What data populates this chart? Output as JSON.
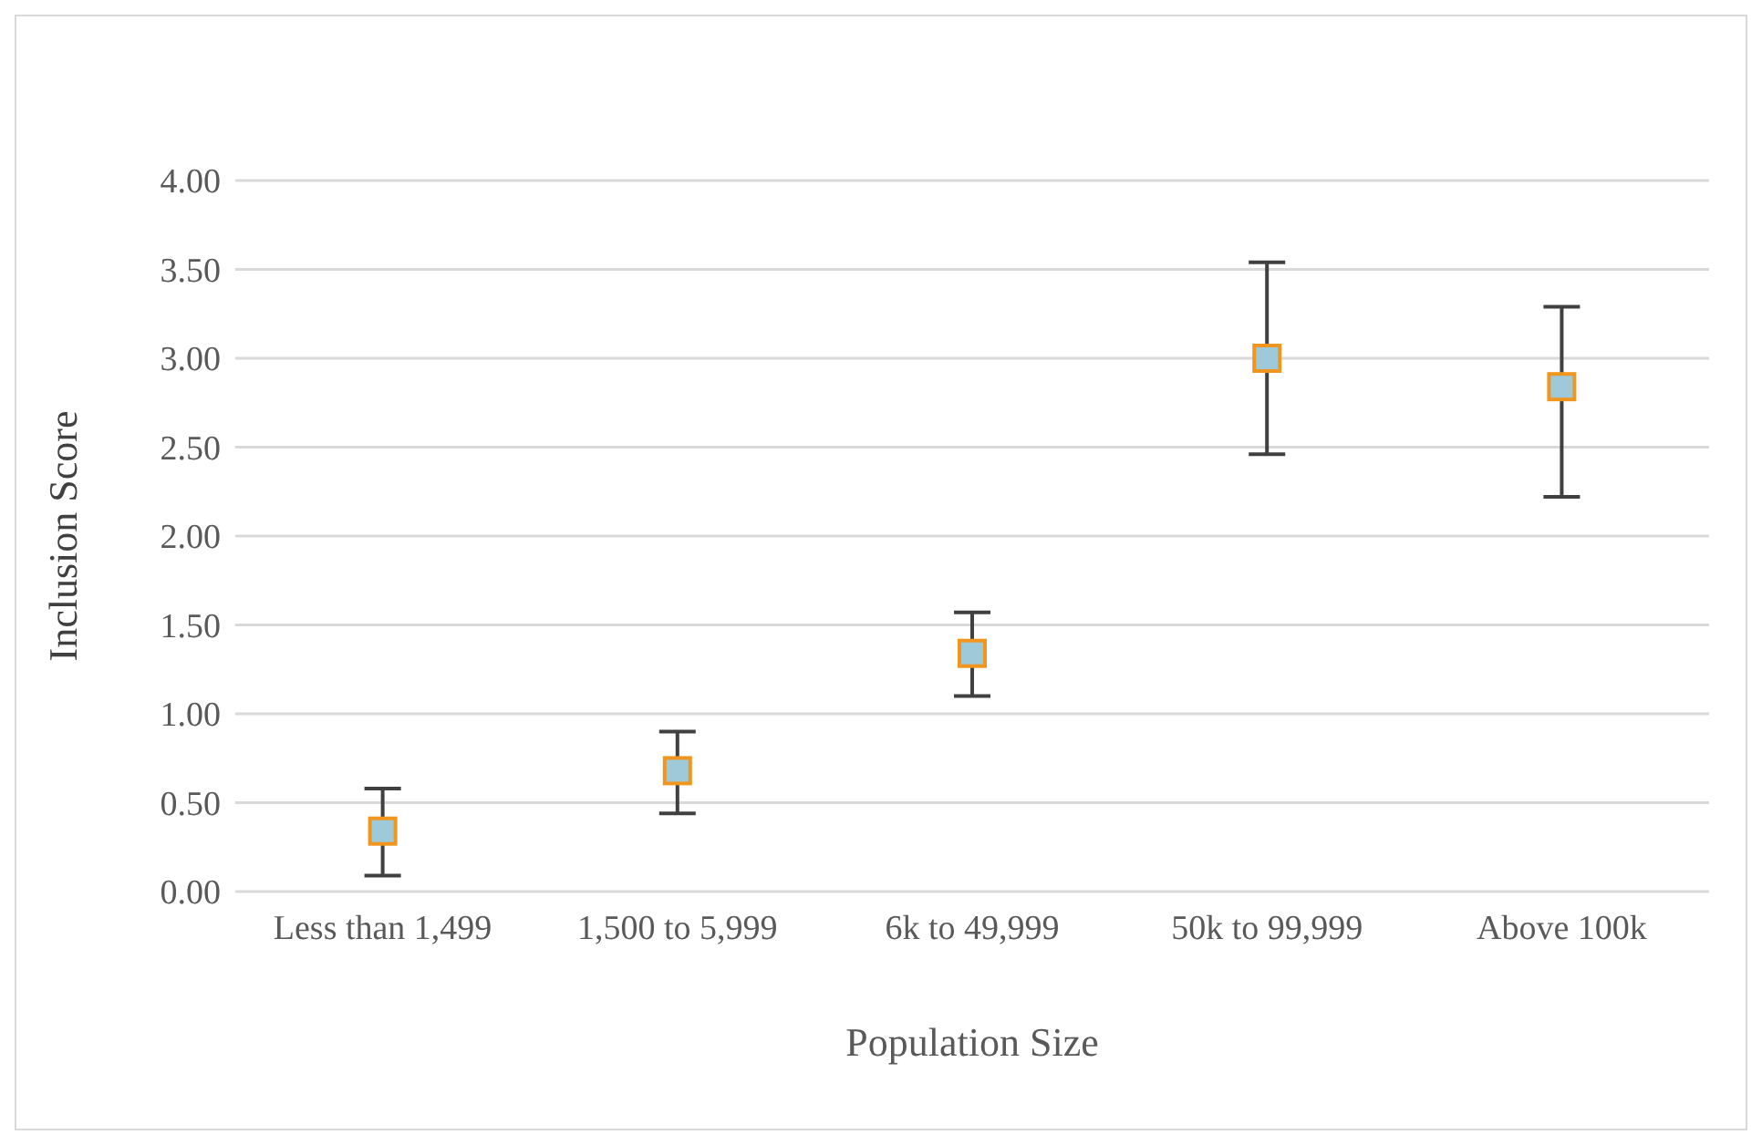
{
  "chart_data": {
    "type": "scatter",
    "xlabel": "Population Size",
    "ylabel": "Inclusion Score",
    "categories": [
      "Less than 1,499",
      "1,500 to 5,999",
      "6k to 49,999",
      "50k to 99,999",
      "Above 100k"
    ],
    "series": [
      {
        "color": "#9ec9d8",
        "values": [
          0.34,
          0.68,
          1.34,
          3.0,
          2.84
        ],
        "errors": [
          [
            0.09,
            0.58
          ],
          [
            0.44,
            0.9
          ],
          [
            1.1,
            1.57
          ],
          [
            2.46,
            3.54
          ],
          [
            2.22,
            3.29
          ]
        ]
      }
    ],
    "ylim": [
      0,
      4
    ],
    "yticks": [
      {
        "value": 0,
        "label": "0.00"
      },
      {
        "value": 0.5,
        "label": "0.50"
      },
      {
        "value": 1,
        "label": "1.00"
      },
      {
        "value": 1.5,
        "label": "1.50"
      },
      {
        "value": 2,
        "label": "2.00"
      },
      {
        "value": 2.5,
        "label": "2.50"
      },
      {
        "value": 3,
        "label": "3.00"
      },
      {
        "value": 3.5,
        "label": "3.50"
      },
      {
        "value": 4,
        "label": "4.00"
      }
    ],
    "grid": "y",
    "legend": false,
    "marker": "square"
  }
}
